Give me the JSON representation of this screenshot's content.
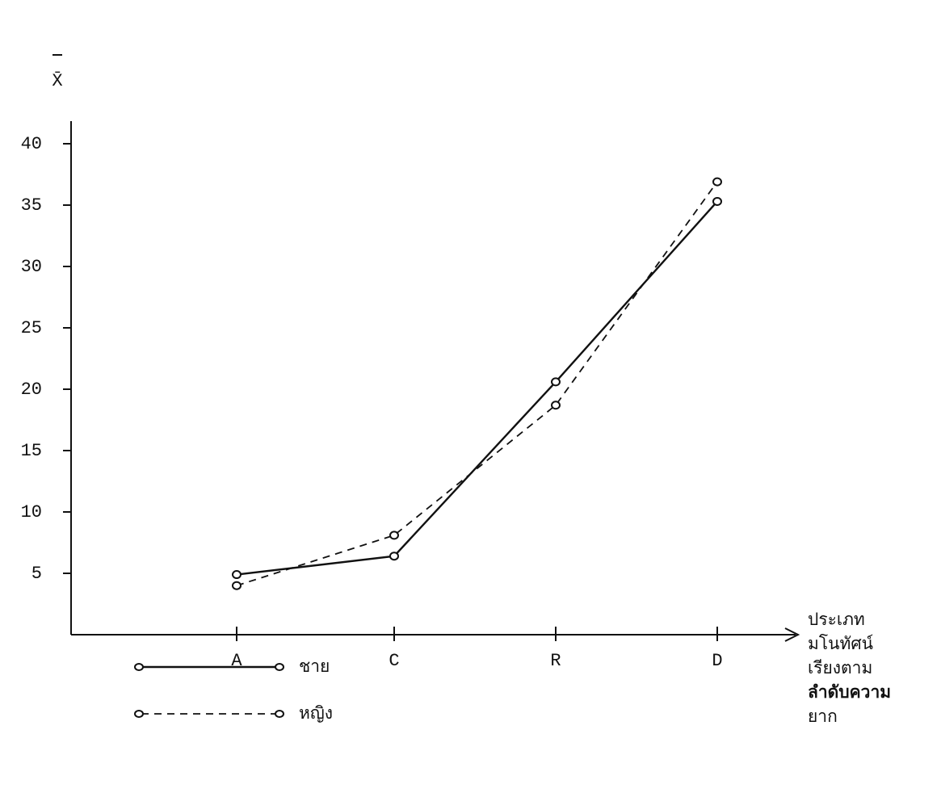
{
  "chart_data": {
    "type": "line",
    "ylabel": "X̄",
    "xlabel_lines": [
      "ประเภท",
      "มโนทัศน์",
      "เรียงตาม",
      "ลำดับความ",
      "ยาก"
    ],
    "categories": [
      "A",
      "C",
      "R",
      "D"
    ],
    "series": [
      {
        "name": "ชาย",
        "color": "#111111",
        "dash": false,
        "values": [
          4.9,
          6.4,
          20.6,
          35.3
        ]
      },
      {
        "name": "หญิง",
        "color": "#111111",
        "dash": true,
        "values": [
          4.0,
          8.1,
          18.7,
          36.9
        ]
      }
    ],
    "ylim": [
      0,
      42
    ],
    "yticks": [
      5,
      10,
      15,
      20,
      25,
      30,
      35,
      40
    ],
    "grid": false
  }
}
